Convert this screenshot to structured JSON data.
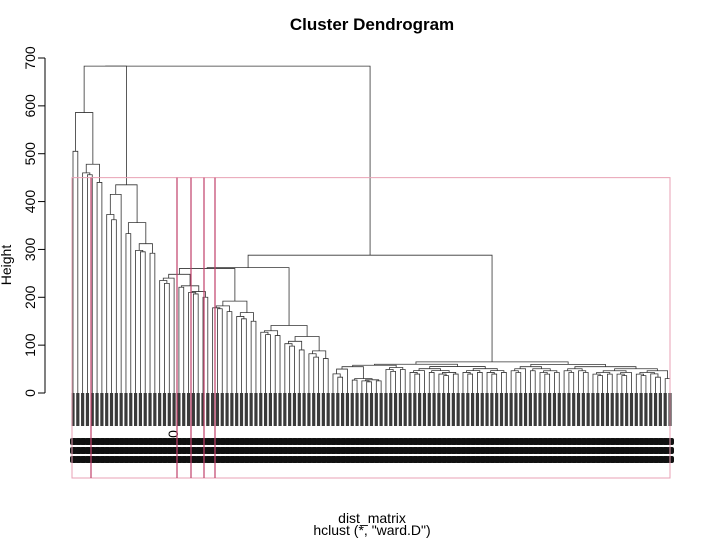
{
  "chart_data": {
    "type": "dendrogram",
    "title": "Cluster Dendrogram",
    "ylabel": "Height",
    "xlabel": "dist_matrix",
    "sub": "hclust (*, \"ward.D\")",
    "ylim": [
      0,
      700
    ],
    "yticks": [
      0,
      100,
      200,
      300,
      400,
      500,
      600,
      700
    ],
    "leaf_count": 125,
    "visible_leaf_label": "0",
    "cut_clusters": 6,
    "colors": {
      "tree": "#333333",
      "leaf_block": "#3a3a3a",
      "rect_border": "#e8a0b4",
      "cluster_divider": "#c0406a"
    },
    "merge_heights": [
      683,
      586,
      505,
      478,
      460,
      456,
      440,
      435,
      415,
      373,
      362,
      356,
      333,
      312,
      298,
      295,
      292,
      288,
      262,
      260,
      248,
      240,
      235,
      229,
      224,
      221,
      212,
      210,
      207,
      200,
      192,
      182,
      178,
      176,
      170,
      168,
      160,
      155,
      150,
      141,
      130,
      127,
      122,
      120,
      118,
      108,
      103,
      98,
      90,
      88,
      82,
      75,
      72,
      65,
      60,
      58,
      55,
      50,
      40,
      33,
      30,
      27
    ]
  }
}
